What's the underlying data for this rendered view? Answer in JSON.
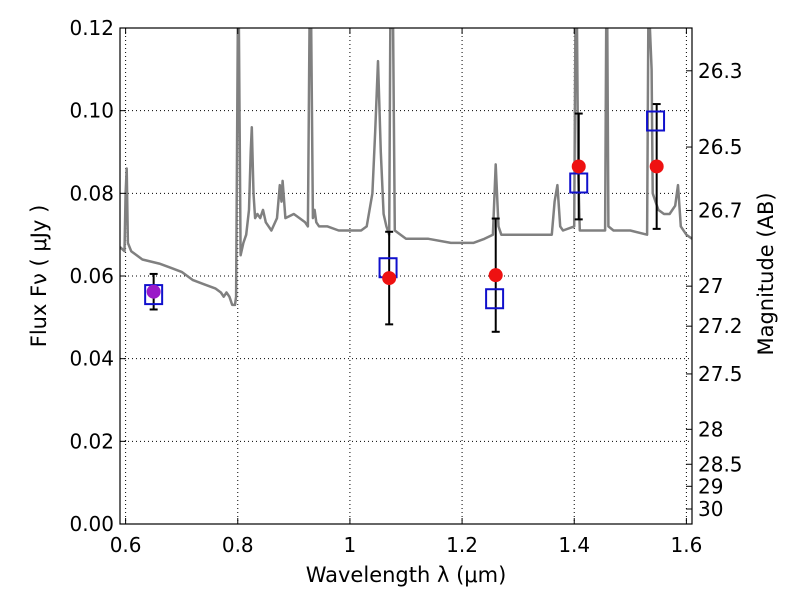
{
  "chart_data": {
    "type": "scatter",
    "xlabel": "Wavelength  λ (μm)",
    "ylabel": "Flux  Fν ( μJy )",
    "y2label": "Magnitude (AB)",
    "xlim": [
      0.59,
      1.61
    ],
    "ylim": [
      0.0,
      0.12
    ],
    "xticks": [
      0.6,
      0.8,
      1.0,
      1.2,
      1.4,
      1.6
    ],
    "xtick_labels": [
      "0.6",
      "0.8",
      "1",
      "1.2",
      "1.4",
      "1.6"
    ],
    "yticks": [
      0.0,
      0.02,
      0.04,
      0.06,
      0.08,
      0.1,
      0.12
    ],
    "ytick_labels": [
      "0.00",
      "0.02",
      "0.04",
      "0.06",
      "0.08",
      "0.10",
      "0.12"
    ],
    "mag_ticks": [
      26.3,
      26.5,
      26.7,
      27,
      27.2,
      27.5,
      28,
      28.5,
      29,
      30
    ],
    "mag_tick_labels": [
      "26.3",
      "26.5",
      "26.7",
      "27",
      "27.2",
      "27.5",
      "28",
      "28.5",
      "29",
      "30"
    ],
    "grid": true,
    "colors": {
      "model": "#808080",
      "observed": "#ee1111",
      "model_band": "#1010cc",
      "purple_point": "#9a1ac8",
      "errorbar": "#000000"
    },
    "series": [
      {
        "kind": "line",
        "x": [
          0.59,
          0.598,
          0.6,
          0.602,
          0.604,
          0.61,
          0.63,
          0.66,
          0.68,
          0.7,
          0.72,
          0.74,
          0.76,
          0.77,
          0.775,
          0.78,
          0.785,
          0.79,
          0.795,
          0.797,
          0.8,
          0.802,
          0.805,
          0.81,
          0.815,
          0.82,
          0.823,
          0.825,
          0.828,
          0.831,
          0.835,
          0.84,
          0.845,
          0.85,
          0.86,
          0.87,
          0.875,
          0.878,
          0.88,
          0.885,
          0.9,
          0.91,
          0.92,
          0.925,
          0.928,
          0.931,
          0.934,
          0.937,
          0.94,
          0.945,
          0.96,
          0.98,
          1.0,
          1.02,
          1.03,
          1.04,
          1.045,
          1.05,
          1.055,
          1.06,
          1.065,
          1.07,
          1.072,
          1.075,
          1.077,
          1.08,
          1.1,
          1.14,
          1.18,
          1.2,
          1.22,
          1.24,
          1.255,
          1.26,
          1.265,
          1.27,
          1.3,
          1.34,
          1.36,
          1.365,
          1.37,
          1.375,
          1.38,
          1.4,
          1.402,
          1.405,
          1.407,
          1.41,
          1.42,
          1.44,
          1.455,
          1.457,
          1.459,
          1.461,
          1.47,
          1.5,
          1.53,
          1.532,
          1.535,
          1.538,
          1.54,
          1.545,
          1.55,
          1.56,
          1.57,
          1.58,
          1.585,
          1.59,
          1.6,
          1.61
        ],
        "y": [
          0.067,
          0.066,
          0.08,
          0.086,
          0.068,
          0.066,
          0.064,
          0.063,
          0.062,
          0.061,
          0.059,
          0.058,
          0.057,
          0.056,
          0.055,
          0.056,
          0.055,
          0.053,
          0.053,
          0.055,
          0.12,
          0.12,
          0.065,
          0.068,
          0.07,
          0.076,
          0.09,
          0.096,
          0.08,
          0.074,
          0.075,
          0.074,
          0.076,
          0.073,
          0.071,
          0.074,
          0.082,
          0.078,
          0.083,
          0.074,
          0.075,
          0.074,
          0.073,
          0.072,
          0.12,
          0.12,
          0.074,
          0.076,
          0.073,
          0.072,
          0.072,
          0.071,
          0.071,
          0.071,
          0.072,
          0.08,
          0.095,
          0.112,
          0.09,
          0.075,
          0.072,
          0.07,
          0.12,
          0.12,
          0.12,
          0.071,
          0.069,
          0.069,
          0.068,
          0.068,
          0.068,
          0.069,
          0.07,
          0.087,
          0.072,
          0.07,
          0.07,
          0.07,
          0.07,
          0.078,
          0.082,
          0.072,
          0.071,
          0.072,
          0.12,
          0.12,
          0.085,
          0.071,
          0.071,
          0.071,
          0.071,
          0.12,
          0.12,
          0.072,
          0.071,
          0.071,
          0.07,
          0.12,
          0.12,
          0.11,
          0.08,
          0.078,
          0.076,
          0.075,
          0.075,
          0.077,
          0.082,
          0.072,
          0.07,
          0.069
        ]
      },
      {
        "kind": "model_band_fluxes",
        "x": [
          0.65,
          1.068,
          1.258,
          1.408,
          1.545
        ],
        "y": [
          0.0555,
          0.062,
          0.0545,
          0.0825,
          0.0975
        ]
      },
      {
        "kind": "observed",
        "x": [
          0.65,
          1.07,
          1.26,
          1.408,
          1.547
        ],
        "y": [
          0.0562,
          0.0595,
          0.0602,
          0.0865,
          0.0865
        ],
        "yerr": [
          0.0043,
          0.0112,
          0.0137,
          0.0128,
          0.0151
        ]
      }
    ]
  }
}
